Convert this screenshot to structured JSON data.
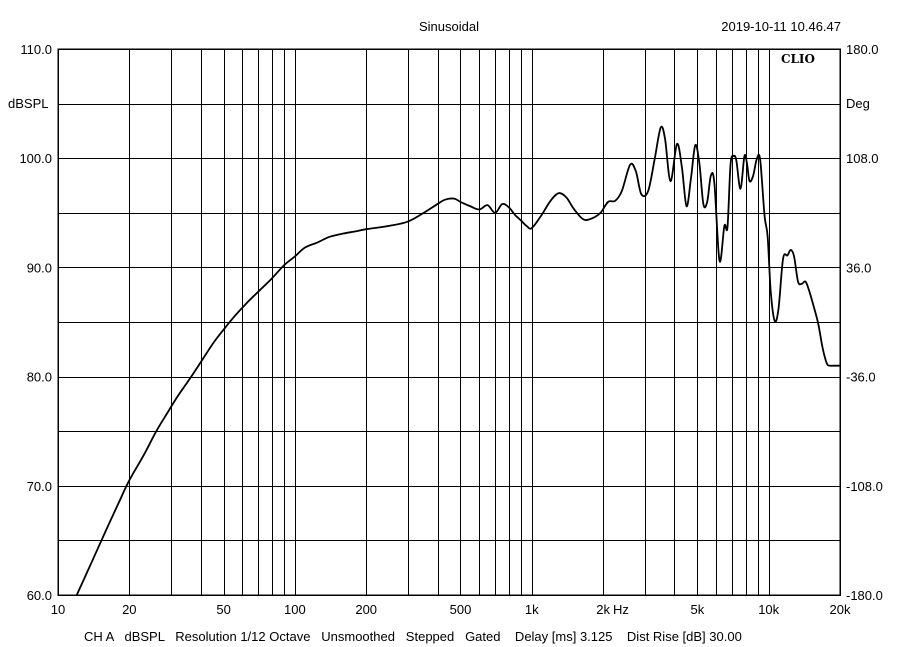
{
  "header": {
    "title": "Sinusoidal",
    "timestamp": "2019-10-11 10.46.47",
    "brand": "CLIO"
  },
  "footer": {
    "settings": "CH A   dBSPL   Resolution 1/12 Octave   Unsmoothed   Stepped   Gated    Delay [ms] 3.125    Dist Rise [dB] 30.00"
  },
  "chart_data": {
    "type": "line",
    "title": "Sinusoidal",
    "ylabel": "dBSPL",
    "y2label": "Deg",
    "xunit": "Hz",
    "xscale": "log",
    "xlim": [
      10,
      20000
    ],
    "ylim": [
      60,
      110
    ],
    "y2lim": [
      -180,
      180
    ],
    "grid": true,
    "x_ticks": [
      {
        "value": 10,
        "label": "10"
      },
      {
        "value": 20,
        "label": "20"
      },
      {
        "value": 50,
        "label": "50"
      },
      {
        "value": 100,
        "label": "100"
      },
      {
        "value": 200,
        "label": "200"
      },
      {
        "value": 500,
        "label": "500"
      },
      {
        "value": 1000,
        "label": "1k"
      },
      {
        "value": 2000,
        "label": "2k"
      },
      {
        "value": 5000,
        "label": "5k"
      },
      {
        "value": 10000,
        "label": "10k"
      },
      {
        "value": 20000,
        "label": "20k"
      }
    ],
    "y_ticks": [
      {
        "value": 60,
        "label": "60.0"
      },
      {
        "value": 70,
        "label": "70.0"
      },
      {
        "value": 80,
        "label": "80.0"
      },
      {
        "value": 90,
        "label": "90.0"
      },
      {
        "value": 100,
        "label": "100.0"
      },
      {
        "value": 110,
        "label": "110.0"
      }
    ],
    "y2_ticks": [
      {
        "value": -180,
        "label": "-180.0"
      },
      {
        "value": -108,
        "label": "-108.0"
      },
      {
        "value": -36,
        "label": "-36.0"
      },
      {
        "value": 36,
        "label": "36.0"
      },
      {
        "value": 108,
        "label": "108.0"
      },
      {
        "value": 180,
        "label": "180.0"
      }
    ],
    "series": [
      {
        "x": [
          12,
          14,
          16,
          18,
          20,
          23,
          26,
          29,
          32,
          36,
          40,
          45,
          50,
          56,
          63,
          71,
          80,
          90,
          100,
          110,
          125,
          140,
          160,
          180,
          200,
          250,
          300,
          350,
          400,
          430,
          470,
          500,
          550,
          600,
          650,
          700,
          750,
          800,
          850,
          900,
          950,
          1000,
          1100,
          1200,
          1300,
          1400,
          1500,
          1650,
          1800,
          1950,
          2100,
          2250,
          2400,
          2600,
          2750,
          2900,
          3100,
          3300,
          3500,
          3650,
          3850,
          4100,
          4300,
          4500,
          4700,
          4900,
          5100,
          5300,
          5500,
          5700,
          5900,
          6200,
          6500,
          6700,
          6900,
          7100,
          7300,
          7600,
          7900,
          8100,
          8300,
          8600,
          8900,
          9200,
          9600,
          9900,
          10200,
          10600,
          11000,
          11500,
          12000,
          12400,
          12800,
          13300,
          13800,
          14300,
          14800,
          15500,
          16200,
          16900,
          17600,
          18200,
          18800,
          19400,
          20000
        ],
        "y": [
          60.0,
          63.2,
          66.0,
          68.4,
          70.5,
          72.8,
          75.0,
          76.7,
          78.2,
          79.8,
          81.3,
          83.0,
          84.3,
          85.6,
          86.8,
          87.9,
          89.0,
          90.2,
          91.0,
          91.8,
          92.3,
          92.8,
          93.1,
          93.3,
          93.5,
          93.8,
          94.2,
          95.0,
          95.8,
          96.2,
          96.3,
          96.0,
          95.6,
          95.3,
          95.7,
          95.0,
          95.8,
          95.5,
          94.8,
          94.3,
          93.8,
          93.6,
          94.8,
          96.1,
          96.8,
          96.4,
          95.4,
          94.4,
          94.5,
          95.0,
          96.0,
          96.1,
          97.0,
          99.4,
          98.8,
          96.7,
          97.0,
          99.9,
          102.8,
          101.8,
          97.9,
          101.3,
          99.2,
          95.6,
          98.2,
          101.2,
          99.5,
          95.8,
          96.0,
          98.4,
          97.7,
          90.6,
          93.8,
          93.7,
          99.4,
          100.2,
          99.8,
          97.2,
          100.2,
          99.5,
          97.9,
          98.4,
          99.9,
          99.9,
          94.8,
          92.8,
          87.8,
          85.1,
          86.2,
          90.8,
          91.1,
          91.6,
          91.0,
          88.7,
          88.5,
          88.7,
          87.9,
          86.4,
          84.8,
          82.6,
          81.2,
          81.0,
          81.0,
          81.0,
          81.0
        ]
      }
    ]
  }
}
